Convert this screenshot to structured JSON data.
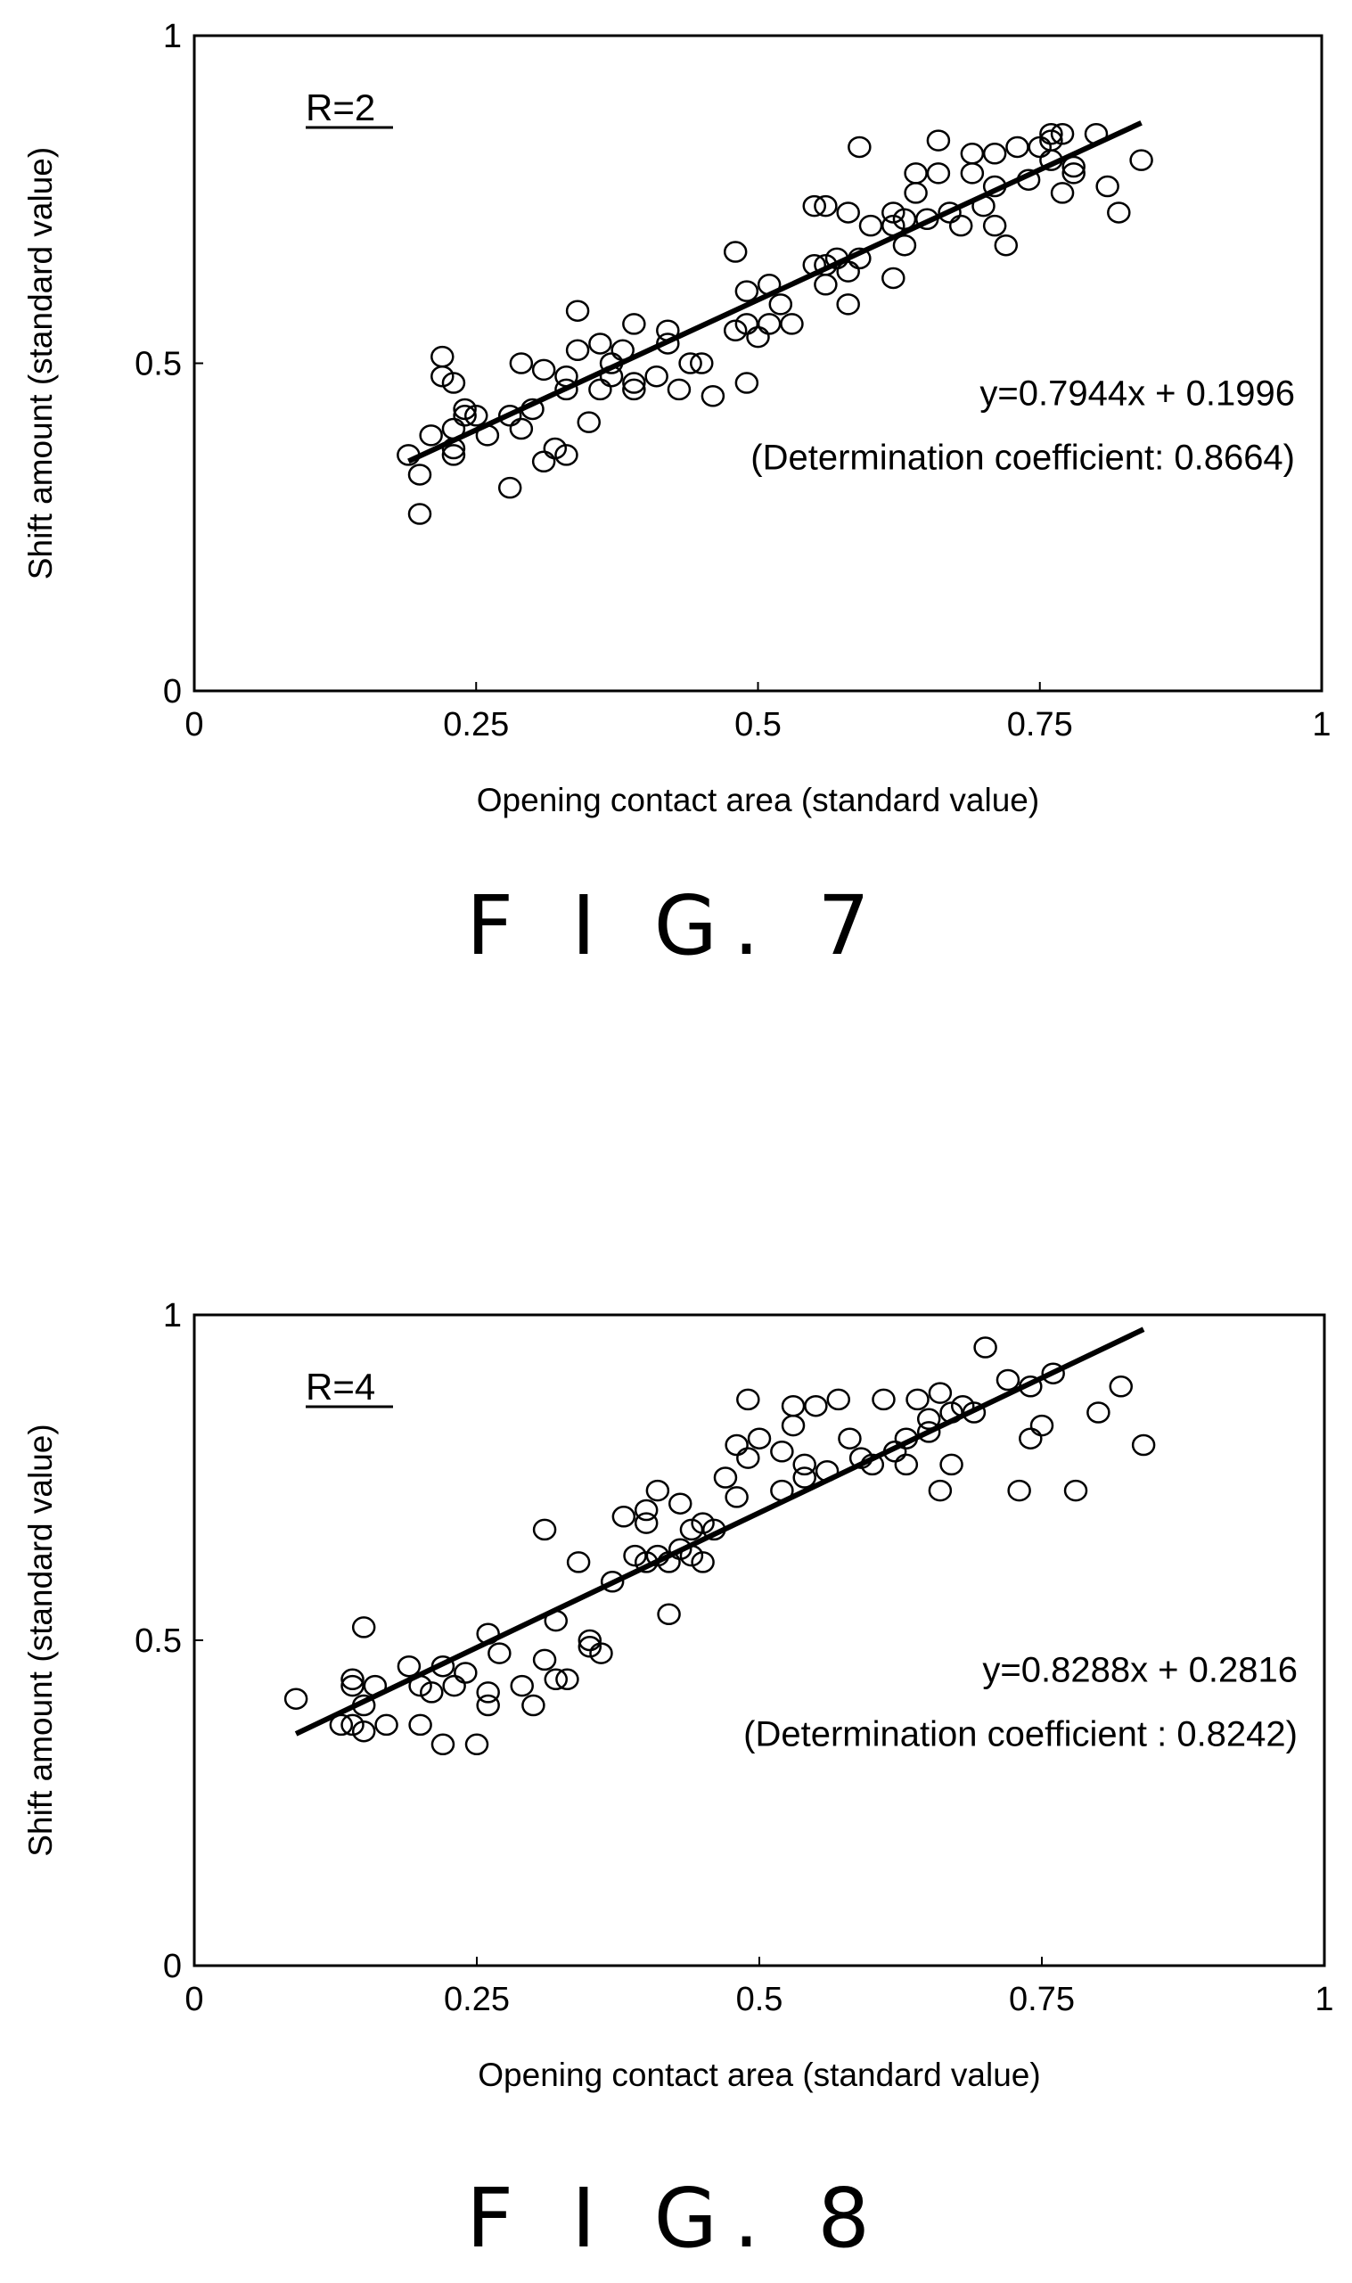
{
  "figures": [
    {
      "caption": "F I G. 7",
      "label": "R=2",
      "equation": "y=0.7944x + 0.1996",
      "r2_text": "(Determination coefficient: 0.8664)",
      "xlabel": "Opening contact area (standard value)",
      "ylabel": "Shift amount (standard value)"
    },
    {
      "caption": "F I G. 8",
      "label": "R=4",
      "equation": "y=0.8288x + 0.2816",
      "r2_text": "(Determination coefficient : 0.8242)",
      "xlabel": "Opening contact area (standard value)",
      "ylabel": "Shift amount (standard value)"
    }
  ],
  "chart_data": [
    {
      "type": "scatter",
      "label": "R=2",
      "xlabel": "Opening contact area (standard value)",
      "ylabel": "Shift amount (standard value)",
      "xlim": [
        0,
        1
      ],
      "ylim": [
        0,
        1
      ],
      "xticks": [
        "0",
        "0.25",
        "0.5",
        "0.75",
        "1"
      ],
      "yticks": [
        "0",
        "0.5",
        "1"
      ],
      "grid": false,
      "fit": {
        "slope": 0.7944,
        "intercept": 0.1996,
        "x_range": [
          0.19,
          0.84
        ],
        "equation": "y=0.7944x + 0.1996",
        "r2": 0.8664
      },
      "points": [
        [
          0.19,
          0.36
        ],
        [
          0.2,
          0.27
        ],
        [
          0.2,
          0.33
        ],
        [
          0.21,
          0.39
        ],
        [
          0.22,
          0.51
        ],
        [
          0.22,
          0.48
        ],
        [
          0.23,
          0.36
        ],
        [
          0.23,
          0.37
        ],
        [
          0.23,
          0.4
        ],
        [
          0.23,
          0.47
        ],
        [
          0.24,
          0.42
        ],
        [
          0.24,
          0.43
        ],
        [
          0.25,
          0.42
        ],
        [
          0.26,
          0.39
        ],
        [
          0.28,
          0.31
        ],
        [
          0.28,
          0.42
        ],
        [
          0.29,
          0.4
        ],
        [
          0.29,
          0.5
        ],
        [
          0.3,
          0.43
        ],
        [
          0.31,
          0.49
        ],
        [
          0.31,
          0.35
        ],
        [
          0.32,
          0.37
        ],
        [
          0.33,
          0.36
        ],
        [
          0.33,
          0.46
        ],
        [
          0.33,
          0.48
        ],
        [
          0.34,
          0.52
        ],
        [
          0.34,
          0.58
        ],
        [
          0.35,
          0.41
        ],
        [
          0.36,
          0.46
        ],
        [
          0.36,
          0.53
        ],
        [
          0.37,
          0.5
        ],
        [
          0.37,
          0.48
        ],
        [
          0.38,
          0.52
        ],
        [
          0.39,
          0.46
        ],
        [
          0.39,
          0.47
        ],
        [
          0.39,
          0.56
        ],
        [
          0.41,
          0.48
        ],
        [
          0.42,
          0.53
        ],
        [
          0.42,
          0.55
        ],
        [
          0.43,
          0.46
        ],
        [
          0.44,
          0.5
        ],
        [
          0.45,
          0.5
        ],
        [
          0.46,
          0.45
        ],
        [
          0.48,
          0.67
        ],
        [
          0.48,
          0.55
        ],
        [
          0.49,
          0.61
        ],
        [
          0.49,
          0.56
        ],
        [
          0.49,
          0.47
        ],
        [
          0.5,
          0.54
        ],
        [
          0.51,
          0.56
        ],
        [
          0.51,
          0.62
        ],
        [
          0.52,
          0.59
        ],
        [
          0.53,
          0.56
        ],
        [
          0.55,
          0.74
        ],
        [
          0.55,
          0.65
        ],
        [
          0.56,
          0.74
        ],
        [
          0.56,
          0.65
        ],
        [
          0.56,
          0.62
        ],
        [
          0.57,
          0.66
        ],
        [
          0.58,
          0.59
        ],
        [
          0.58,
          0.64
        ],
        [
          0.58,
          0.73
        ],
        [
          0.59,
          0.66
        ],
        [
          0.59,
          0.83
        ],
        [
          0.6,
          0.71
        ],
        [
          0.62,
          0.63
        ],
        [
          0.62,
          0.71
        ],
        [
          0.62,
          0.73
        ],
        [
          0.63,
          0.68
        ],
        [
          0.63,
          0.72
        ],
        [
          0.64,
          0.76
        ],
        [
          0.64,
          0.79
        ],
        [
          0.65,
          0.72
        ],
        [
          0.66,
          0.79
        ],
        [
          0.66,
          0.84
        ],
        [
          0.67,
          0.73
        ],
        [
          0.68,
          0.71
        ],
        [
          0.69,
          0.79
        ],
        [
          0.69,
          0.82
        ],
        [
          0.7,
          0.74
        ],
        [
          0.71,
          0.71
        ],
        [
          0.71,
          0.77
        ],
        [
          0.71,
          0.82
        ],
        [
          0.72,
          0.68
        ],
        [
          0.73,
          0.83
        ],
        [
          0.74,
          0.78
        ],
        [
          0.75,
          0.83
        ],
        [
          0.76,
          0.84
        ],
        [
          0.76,
          0.85
        ],
        [
          0.76,
          0.81
        ],
        [
          0.77,
          0.85
        ],
        [
          0.77,
          0.76
        ],
        [
          0.78,
          0.79
        ],
        [
          0.78,
          0.8
        ],
        [
          0.8,
          0.85
        ],
        [
          0.81,
          0.77
        ],
        [
          0.82,
          0.73
        ],
        [
          0.84,
          0.81
        ]
      ]
    },
    {
      "type": "scatter",
      "label": "R=4",
      "xlabel": "Opening contact area (standard value)",
      "ylabel": "Shift amount (standard value)",
      "xlim": [
        0,
        1
      ],
      "ylim": [
        0,
        1
      ],
      "xticks": [
        "0",
        "0.25",
        "0.5",
        "0.75",
        "1"
      ],
      "yticks": [
        "0",
        "0.5",
        "1"
      ],
      "grid": false,
      "fit": {
        "slope": 0.8288,
        "intercept": 0.2816,
        "x_range": [
          0.09,
          0.84
        ],
        "equation": "y=0.8288x + 0.2816",
        "r2": 0.8242
      },
      "points": [
        [
          0.09,
          0.41
        ],
        [
          0.13,
          0.37
        ],
        [
          0.14,
          0.37
        ],
        [
          0.14,
          0.44
        ],
        [
          0.14,
          0.43
        ],
        [
          0.15,
          0.52
        ],
        [
          0.15,
          0.4
        ],
        [
          0.15,
          0.36
        ],
        [
          0.16,
          0.43
        ],
        [
          0.17,
          0.37
        ],
        [
          0.19,
          0.46
        ],
        [
          0.2,
          0.37
        ],
        [
          0.2,
          0.43
        ],
        [
          0.21,
          0.42
        ],
        [
          0.22,
          0.34
        ],
        [
          0.22,
          0.46
        ],
        [
          0.23,
          0.43
        ],
        [
          0.24,
          0.45
        ],
        [
          0.25,
          0.34
        ],
        [
          0.26,
          0.4
        ],
        [
          0.26,
          0.42
        ],
        [
          0.26,
          0.51
        ],
        [
          0.27,
          0.48
        ],
        [
          0.29,
          0.43
        ],
        [
          0.3,
          0.4
        ],
        [
          0.31,
          0.67
        ],
        [
          0.31,
          0.47
        ],
        [
          0.32,
          0.44
        ],
        [
          0.32,
          0.53
        ],
        [
          0.33,
          0.44
        ],
        [
          0.34,
          0.62
        ],
        [
          0.35,
          0.49
        ],
        [
          0.35,
          0.5
        ],
        [
          0.36,
          0.48
        ],
        [
          0.37,
          0.59
        ],
        [
          0.38,
          0.69
        ],
        [
          0.39,
          0.63
        ],
        [
          0.4,
          0.62
        ],
        [
          0.4,
          0.68
        ],
        [
          0.4,
          0.7
        ],
        [
          0.41,
          0.73
        ],
        [
          0.41,
          0.63
        ],
        [
          0.42,
          0.54
        ],
        [
          0.42,
          0.62
        ],
        [
          0.43,
          0.64
        ],
        [
          0.43,
          0.71
        ],
        [
          0.44,
          0.67
        ],
        [
          0.44,
          0.63
        ],
        [
          0.45,
          0.62
        ],
        [
          0.45,
          0.68
        ],
        [
          0.46,
          0.67
        ],
        [
          0.47,
          0.75
        ],
        [
          0.48,
          0.72
        ],
        [
          0.48,
          0.8
        ],
        [
          0.49,
          0.87
        ],
        [
          0.49,
          0.78
        ],
        [
          0.5,
          0.81
        ],
        [
          0.52,
          0.79
        ],
        [
          0.52,
          0.73
        ],
        [
          0.53,
          0.83
        ],
        [
          0.53,
          0.86
        ],
        [
          0.54,
          0.77
        ],
        [
          0.54,
          0.75
        ],
        [
          0.55,
          0.86
        ],
        [
          0.56,
          0.76
        ],
        [
          0.57,
          0.87
        ],
        [
          0.58,
          0.81
        ],
        [
          0.59,
          0.78
        ],
        [
          0.6,
          0.77
        ],
        [
          0.61,
          0.87
        ],
        [
          0.62,
          0.79
        ],
        [
          0.63,
          0.81
        ],
        [
          0.63,
          0.77
        ],
        [
          0.64,
          0.87
        ],
        [
          0.65,
          0.82
        ],
        [
          0.65,
          0.84
        ],
        [
          0.66,
          0.73
        ],
        [
          0.66,
          0.88
        ],
        [
          0.67,
          0.77
        ],
        [
          0.67,
          0.85
        ],
        [
          0.68,
          0.86
        ],
        [
          0.69,
          0.85
        ],
        [
          0.7,
          0.95
        ],
        [
          0.72,
          0.9
        ],
        [
          0.73,
          0.73
        ],
        [
          0.74,
          0.89
        ],
        [
          0.74,
          0.81
        ],
        [
          0.75,
          0.83
        ],
        [
          0.76,
          0.91
        ],
        [
          0.78,
          0.73
        ],
        [
          0.8,
          0.85
        ],
        [
          0.82,
          0.89
        ],
        [
          0.84,
          0.8
        ]
      ]
    }
  ]
}
